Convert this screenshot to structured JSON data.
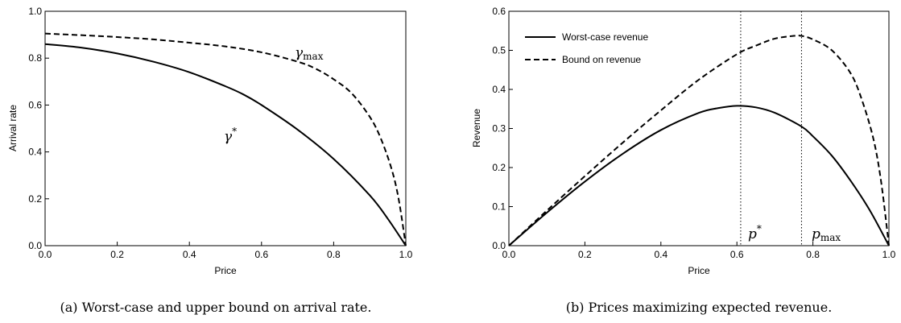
{
  "chart_data": [
    {
      "type": "line",
      "xlabel": "Price",
      "ylabel": "Arrival rate",
      "xlim": [
        0,
        1
      ],
      "ylim": [
        0,
        1
      ],
      "xticks": [
        "0.0",
        "0.2",
        "0.4",
        "0.6",
        "0.8",
        "1.0"
      ],
      "yticks": [
        "0.0",
        "0.2",
        "0.4",
        "0.6",
        "0.8",
        "1.0"
      ],
      "series": [
        {
          "name": "γ*",
          "style": "solid",
          "x": [
            0,
            0.1,
            0.2,
            0.3,
            0.4,
            0.5,
            0.55,
            0.6,
            0.7,
            0.8,
            0.9,
            0.95,
            1.0
          ],
          "y": [
            0.86,
            0.845,
            0.82,
            0.785,
            0.74,
            0.68,
            0.645,
            0.6,
            0.495,
            0.37,
            0.215,
            0.115,
            0.0
          ]
        },
        {
          "name": "γmax",
          "style": "dashed",
          "x": [
            0,
            0.1,
            0.2,
            0.3,
            0.4,
            0.5,
            0.6,
            0.7,
            0.75,
            0.8,
            0.85,
            0.9,
            0.93,
            0.96,
            0.98,
            1.0
          ],
          "y": [
            0.905,
            0.898,
            0.89,
            0.88,
            0.866,
            0.85,
            0.825,
            0.785,
            0.755,
            0.71,
            0.65,
            0.55,
            0.46,
            0.33,
            0.2,
            0.0
          ]
        }
      ],
      "annotations": {
        "gamma_star": "γ",
        "gamma_star_sup": "*",
        "gamma_max": "γ",
        "gamma_max_sub": "max"
      },
      "caption": "(a) Worst-case and upper bound on arrival rate."
    },
    {
      "type": "line",
      "xlabel": "Price",
      "ylabel": "Revenue",
      "xlim": [
        0,
        1
      ],
      "ylim": [
        0,
        0.6
      ],
      "xticks": [
        "0.0",
        "0.2",
        "0.4",
        "0.6",
        "0.8",
        "1.0"
      ],
      "yticks": [
        "0.0",
        "0.1",
        "0.2",
        "0.3",
        "0.4",
        "0.5",
        "0.6"
      ],
      "series": [
        {
          "name": "Worst-case revenue",
          "style": "solid",
          "x": [
            0,
            0.1,
            0.2,
            0.3,
            0.4,
            0.5,
            0.55,
            0.6,
            0.65,
            0.7,
            0.77,
            0.8,
            0.85,
            0.9,
            0.95,
            1.0
          ],
          "y": [
            0,
            0.0845,
            0.164,
            0.2355,
            0.296,
            0.34,
            0.352,
            0.358,
            0.354,
            0.34,
            0.305,
            0.28,
            0.23,
            0.165,
            0.09,
            0.0
          ]
        },
        {
          "name": "Bound on revenue",
          "style": "dashed",
          "x": [
            0,
            0.1,
            0.2,
            0.3,
            0.4,
            0.5,
            0.6,
            0.65,
            0.7,
            0.75,
            0.77,
            0.8,
            0.85,
            0.9,
            0.93,
            0.96,
            0.98,
            1.0
          ],
          "y": [
            0,
            0.0898,
            0.178,
            0.264,
            0.3464,
            0.425,
            0.49,
            0.512,
            0.53,
            0.537,
            0.537,
            0.528,
            0.5,
            0.44,
            0.37,
            0.27,
            0.16,
            0.0
          ]
        }
      ],
      "vlines": [
        0.61,
        0.77
      ],
      "annotations": {
        "p_star": "p",
        "p_star_sup": "*",
        "p_max": "p",
        "p_max_sub": "max"
      },
      "legend": [
        "Worst-case revenue",
        "Bound on revenue"
      ],
      "legend_position": "top-left",
      "caption": "(b) Prices maximizing expected revenue."
    }
  ]
}
